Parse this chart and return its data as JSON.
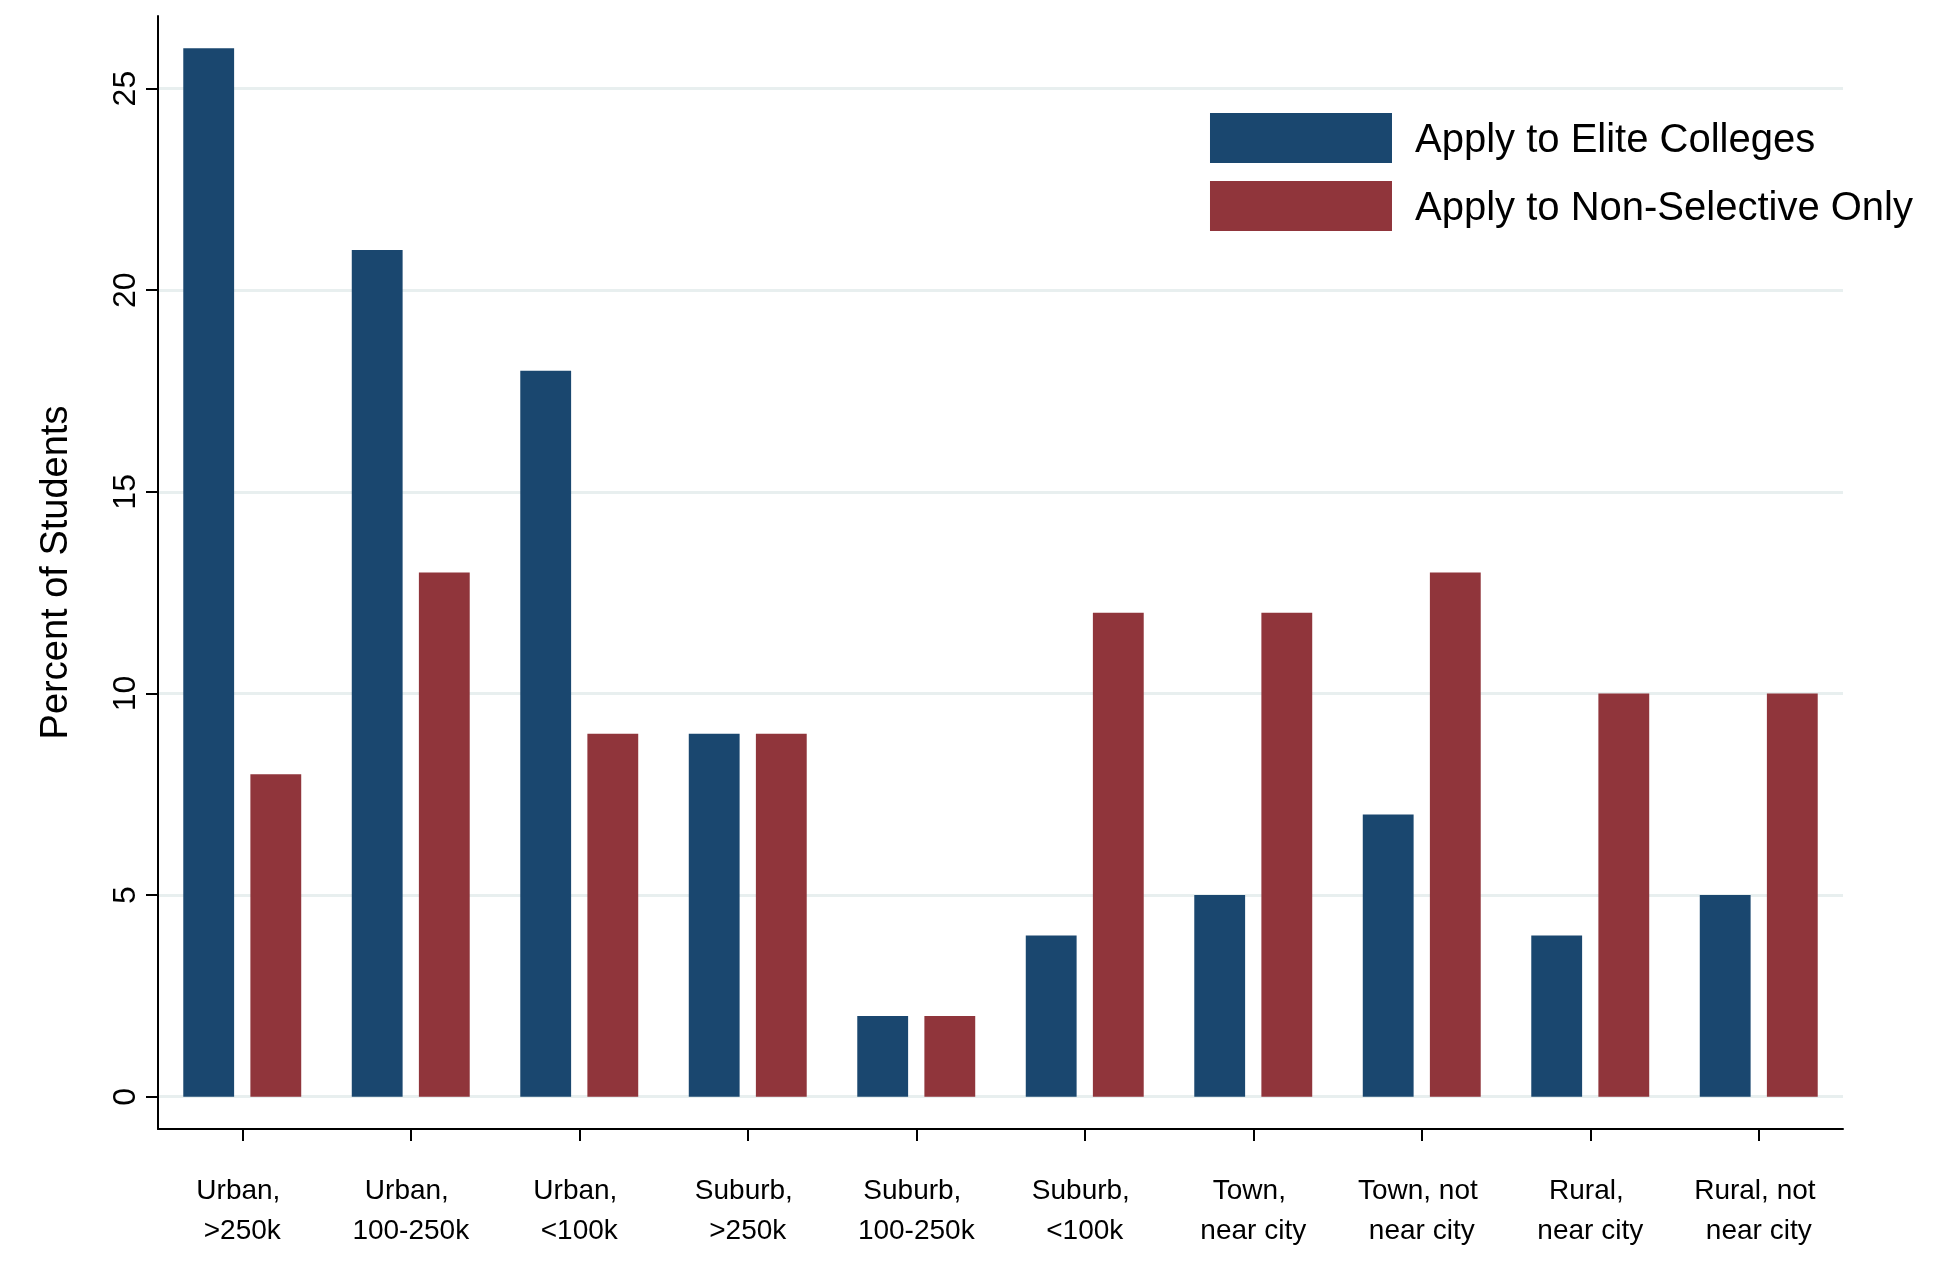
{
  "chart_data": {
    "type": "bar",
    "ylabel": "Percent of Students",
    "categories": [
      "Urban, >250k",
      "Urban, 100-250k",
      "Urban, <100k",
      "Suburb, >250k",
      "Suburb, 100-250k",
      "Suburb, <100k",
      "Town, near city",
      "Town, not near city",
      "Rural, near city",
      "Rural, not near city"
    ],
    "series": [
      {
        "name": "Apply to Elite Colleges",
        "color": "#1a476f",
        "values": [
          26,
          21,
          18,
          9,
          2,
          4,
          5,
          7,
          4,
          5
        ]
      },
      {
        "name": "Apply to Non-Selective Only",
        "color": "#90353b",
        "values": [
          8,
          13,
          9,
          9,
          2,
          12,
          12,
          13,
          10,
          10
        ]
      }
    ],
    "ylim": [
      -0.8,
      26.8
    ],
    "yticks": [
      0,
      5,
      10,
      15,
      20,
      25
    ],
    "grid": "y",
    "legend": "top right"
  }
}
